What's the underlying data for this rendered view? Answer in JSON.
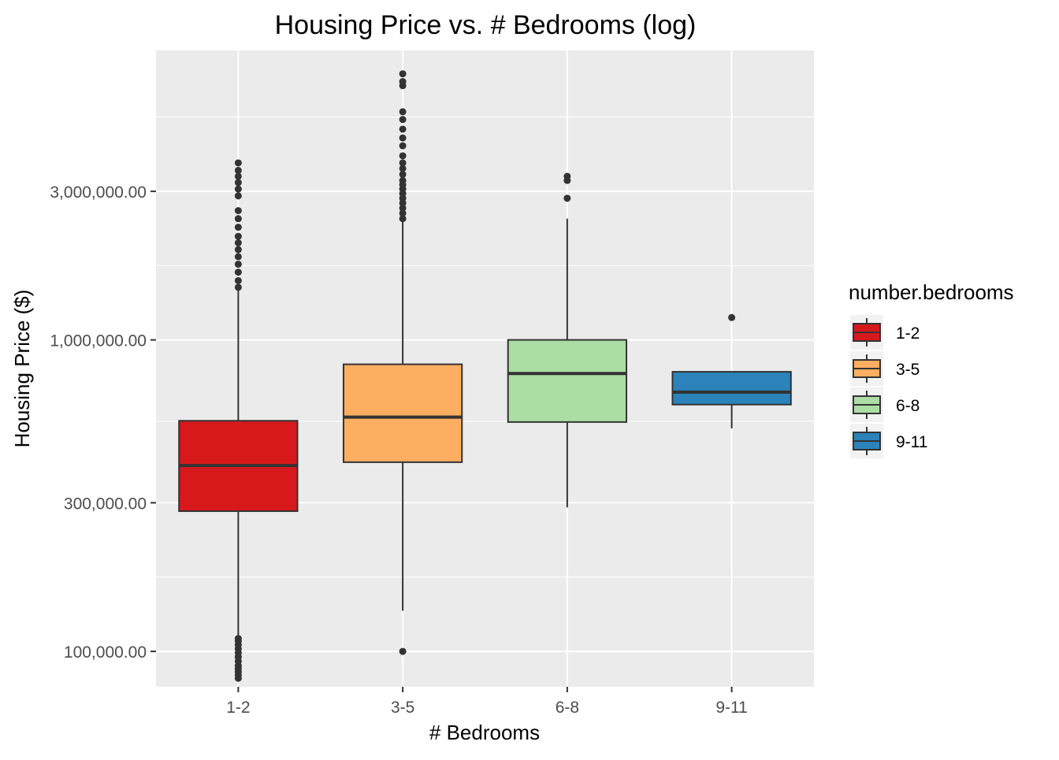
{
  "chart_data": {
    "type": "boxplot",
    "title": "Housing Price vs. # Bedrooms (log)",
    "xlabel": "# Bedrooms",
    "ylabel": "Housing Price ($)",
    "y_scale": "log10",
    "ylim": [
      77000,
      8500000
    ],
    "y_ticks": [
      100000,
      300000,
      1000000,
      3000000
    ],
    "y_tick_labels": [
      "100,000.00",
      "300,000.00",
      "1,000,000.00",
      "3,000,000.00"
    ],
    "categories": [
      "1-2",
      "3-5",
      "6-8",
      "9-11"
    ],
    "grid": true,
    "legend": {
      "title": "number.bedrooms",
      "position": "right",
      "entries": [
        "1-2",
        "3-5",
        "6-8",
        "9-11"
      ]
    },
    "series": [
      {
        "name": "1-2",
        "color": "#D7191C",
        "whisker_low": 82000,
        "q1": 282000,
        "median": 395000,
        "q3": 550000,
        "whisker_high": 1475000,
        "outliers": [
          82000,
          84000,
          86000,
          88000,
          90000,
          93000,
          96000,
          99000,
          102000,
          105000,
          108000,
          110000,
          1475000,
          1550000,
          1650000,
          1750000,
          1850000,
          1950000,
          2050000,
          2150000,
          2300000,
          2450000,
          2600000,
          2900000,
          3050000,
          3200000,
          3350000,
          3500000,
          3700000
        ]
      },
      {
        "name": "3-5",
        "color": "#FDAE61",
        "whisker_low": 135000,
        "q1": 405000,
        "median": 565000,
        "q3": 835000,
        "whisker_high": 2400000,
        "outliers": [
          100000,
          2450000,
          2550000,
          2650000,
          2750000,
          2850000,
          2950000,
          3050000,
          3150000,
          3250000,
          3400000,
          3550000,
          3700000,
          3900000,
          4200000,
          4450000,
          4750000,
          5100000,
          5400000,
          6550000,
          6750000,
          7150000
        ]
      },
      {
        "name": "6-8",
        "color": "#ABDDA4",
        "whisker_low": 290000,
        "q1": 545000,
        "median": 780000,
        "q3": 1000000,
        "whisker_high": 2450000,
        "outliers": [
          2850000,
          3250000,
          3350000
        ]
      },
      {
        "name": "9-11",
        "color": "#2B83BA",
        "whisker_low": 520000,
        "q1": 620000,
        "median": 680000,
        "q3": 790000,
        "whisker_high": 790000,
        "outliers": [
          1180000
        ]
      }
    ]
  }
}
